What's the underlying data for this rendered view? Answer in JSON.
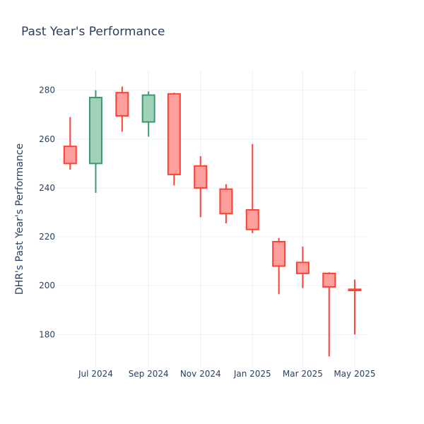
{
  "chart_data": {
    "type": "candlestick",
    "title": "Past Year's Performance",
    "xlabel": "",
    "ylabel": "DHR's Past Year's Performance",
    "x_ticks": [
      {
        "date": "2024-07-01",
        "label": "Jul 2024"
      },
      {
        "date": "2024-09-01",
        "label": "Sep 2024"
      },
      {
        "date": "2024-11-01",
        "label": "Nov 2024"
      },
      {
        "date": "2025-01-01",
        "label": "Jan 2025"
      },
      {
        "date": "2025-03-01",
        "label": "Mar 2025"
      },
      {
        "date": "2025-05-01",
        "label": "May 2025"
      }
    ],
    "y_ticks": [
      180,
      200,
      220,
      240,
      260,
      280
    ],
    "ylim": [
      166.5,
      288
    ],
    "xlim": [
      "2024-05-16",
      "2025-05-16"
    ],
    "grid": true,
    "colors": {
      "increasing_line": "#3d9970",
      "increasing_fill": "#9fd2b9",
      "decreasing_line": "#ff4136",
      "decreasing_fill": "#ff9f9b"
    },
    "candles": [
      {
        "date": "2024-06-01",
        "open": 257,
        "high": 269,
        "low": 247.5,
        "close": 250
      },
      {
        "date": "2024-07-01",
        "open": 250,
        "high": 280,
        "low": 238,
        "close": 277
      },
      {
        "date": "2024-08-01",
        "open": 279,
        "high": 281.5,
        "low": 263,
        "close": 269.5
      },
      {
        "date": "2024-09-01",
        "open": 267,
        "high": 279.5,
        "low": 261,
        "close": 278
      },
      {
        "date": "2024-10-01",
        "open": 278.5,
        "high": 279,
        "low": 241,
        "close": 245.5
      },
      {
        "date": "2024-11-01",
        "open": 249,
        "high": 253,
        "low": 228,
        "close": 240
      },
      {
        "date": "2024-12-01",
        "open": 239.5,
        "high": 241.5,
        "low": 225.5,
        "close": 229.5
      },
      {
        "date": "2025-01-01",
        "open": 231,
        "high": 258,
        "low": 221.5,
        "close": 223
      },
      {
        "date": "2025-02-01",
        "open": 218,
        "high": 219.5,
        "low": 196.5,
        "close": 208
      },
      {
        "date": "2025-03-01",
        "open": 209.5,
        "high": 216,
        "low": 199,
        "close": 205
      },
      {
        "date": "2025-04-01",
        "open": 205,
        "high": 205.5,
        "low": 171,
        "close": 199.5
      },
      {
        "date": "2025-05-01",
        "open": 198.5,
        "high": 202.5,
        "low": 180,
        "close": 198
      }
    ]
  }
}
